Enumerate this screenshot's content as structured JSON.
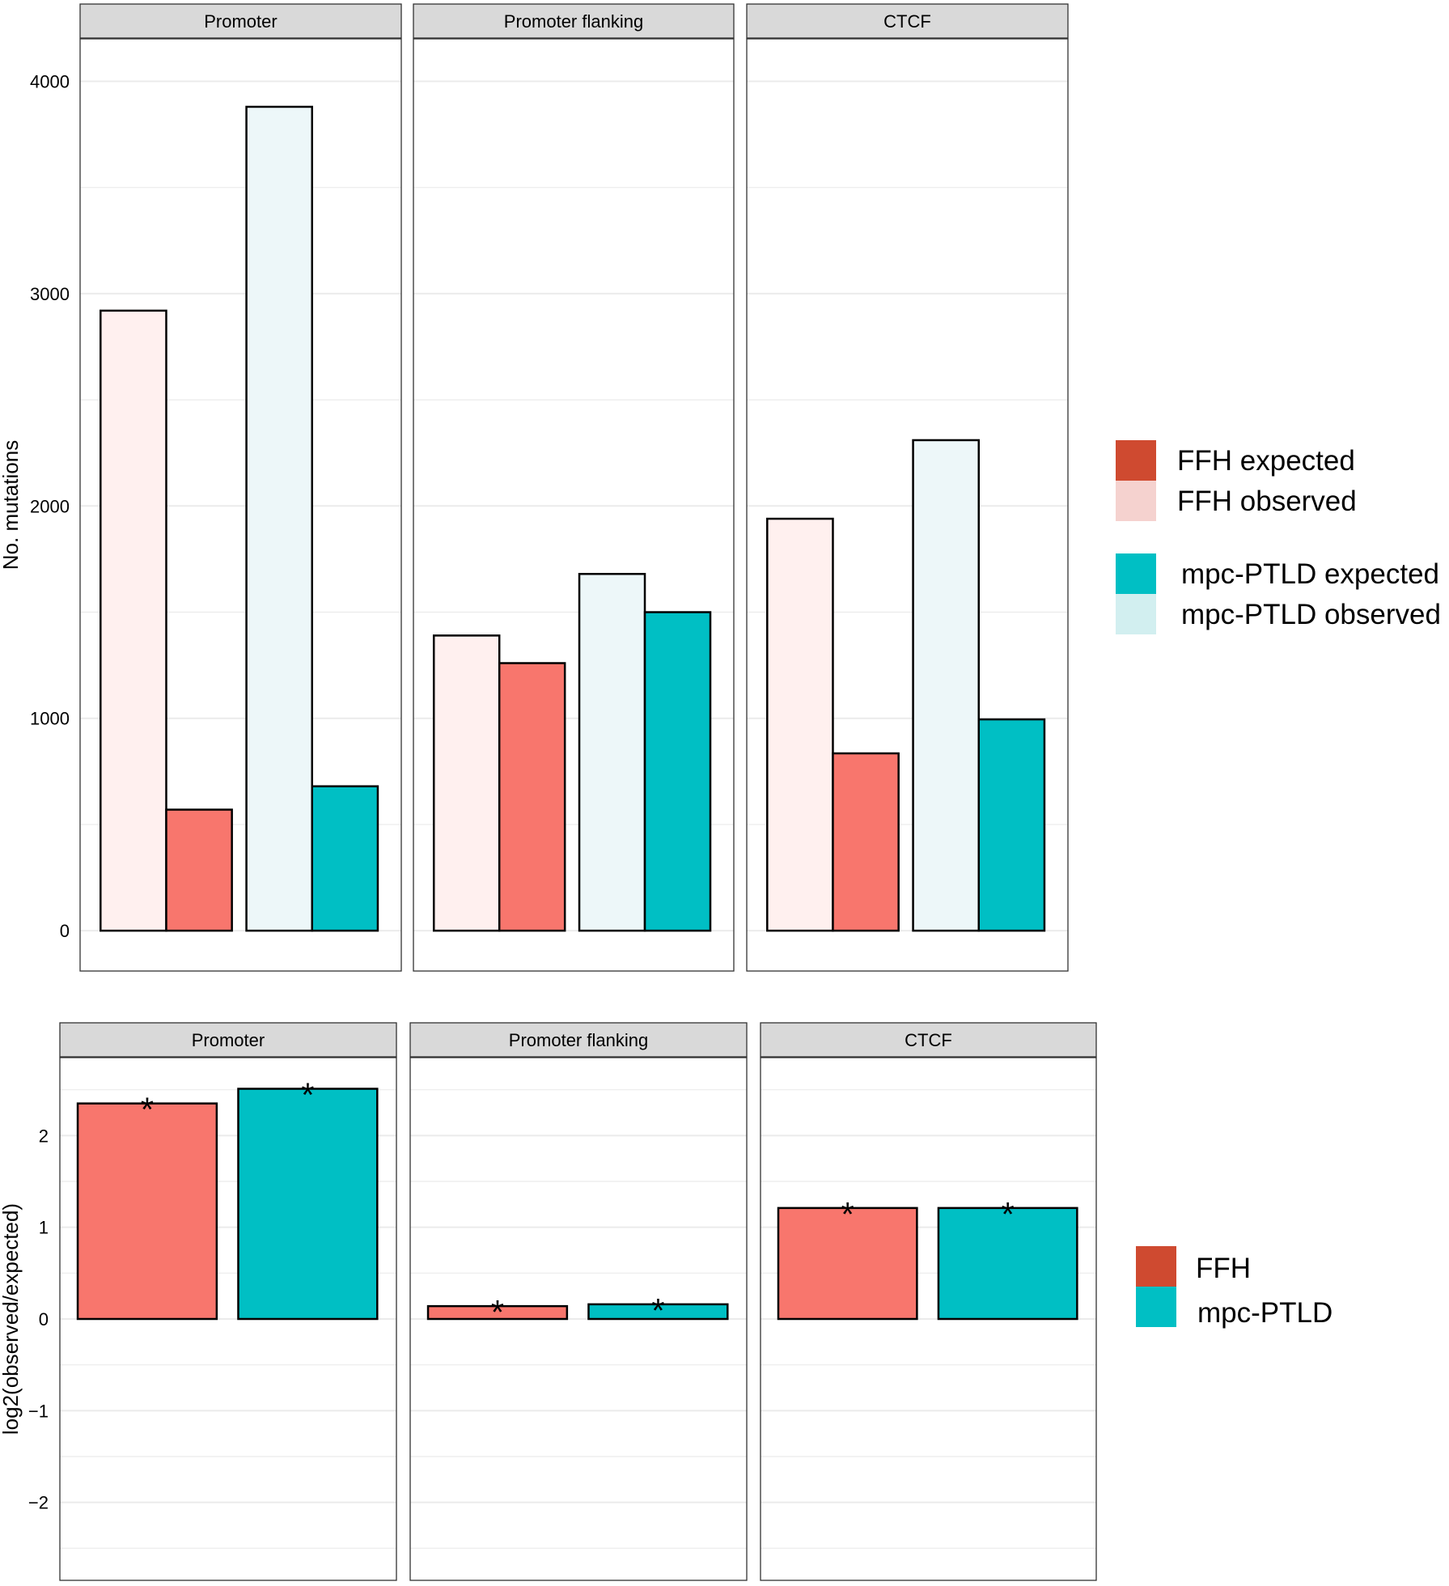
{
  "colors": {
    "ffh_expected": "#F8766D",
    "ffh_observed": "#FFF0EF",
    "mpc_expected": "#00BFC4",
    "mpc_observed": "#EDF7F9",
    "ffh_legend_expected": "#CF4A30",
    "ffh_legend_observed": "#F5D2CF",
    "mpc_legend_expected": "#00BFC4",
    "mpc_legend_observed": "#D2EFF0",
    "strip_fill": "#D9D9D9",
    "grid": "#EBEBEB"
  },
  "chart_data": [
    {
      "type": "bar",
      "panel": "top",
      "ylabel": "No. mutations",
      "ylim": [
        -190,
        4200
      ],
      "yticks": [
        0,
        1000,
        2000,
        3000,
        4000
      ],
      "facets": [
        "Promoter",
        "Promoter flanking",
        "CTCF"
      ],
      "series": [
        {
          "name": "FFH observed",
          "group": "FFH",
          "kind": "observed",
          "values": [
            2920,
            1390,
            1940
          ]
        },
        {
          "name": "FFH expected",
          "group": "FFH",
          "kind": "expected",
          "values": [
            570,
            1260,
            835
          ]
        },
        {
          "name": "mpc-PTLD observed",
          "group": "mpc-PTLD",
          "kind": "observed",
          "values": [
            3880,
            1680,
            2310
          ]
        },
        {
          "name": "mpc-PTLD expected",
          "group": "mpc-PTLD",
          "kind": "expected",
          "values": [
            680,
            1500,
            995
          ]
        }
      ],
      "legend": {
        "position": "right",
        "groups": [
          [
            "FFH expected",
            "FFH observed"
          ],
          [
            "mpc-PTLD expected",
            "mpc-PTLD observed"
          ]
        ]
      }
    },
    {
      "type": "bar",
      "panel": "bottom",
      "ylabel": "log2(observed/expected)",
      "ylim": [
        -2.85,
        2.85
      ],
      "yticks": [
        -2,
        -1,
        0,
        1,
        2
      ],
      "facets": [
        "Promoter",
        "Promoter flanking",
        "CTCF"
      ],
      "significance_marker": "*",
      "series": [
        {
          "name": "FFH",
          "values": [
            2.35,
            0.14,
            1.21
          ],
          "significant": [
            true,
            true,
            true
          ]
        },
        {
          "name": "mpc-PTLD",
          "values": [
            2.51,
            0.16,
            1.21
          ],
          "significant": [
            true,
            true,
            true
          ]
        }
      ],
      "legend": {
        "position": "right",
        "labels": [
          "FFH",
          "mpc-PTLD"
        ]
      }
    }
  ]
}
